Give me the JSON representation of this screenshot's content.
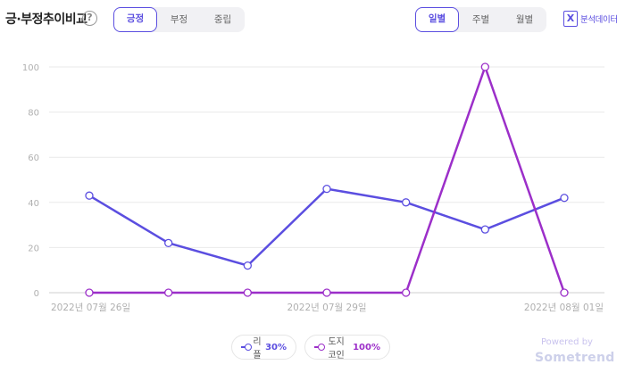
{
  "header": {
    "title": "긍·부정추이비교",
    "help_glyph": "?",
    "sentiment_tabs": [
      "긍정",
      "부정",
      "중립"
    ],
    "sentiment_active": 0,
    "period_tabs": [
      "일별",
      "주별",
      "월별"
    ],
    "period_active": 0,
    "export_icon": "excel-icon",
    "export_glyph": "X",
    "export_label": "분석데이터"
  },
  "chart_data": {
    "type": "line",
    "x": [
      "2022년 07월 26일",
      "2022년 07월 27일",
      "2022년 07월 28일",
      "2022년 07월 29일",
      "2022년 07월 30일",
      "2022년 07월 31일",
      "2022년 08월 01일"
    ],
    "x_tick_labels": [
      "2022년 07월 26일",
      "2022년 07월 29일",
      "2022년 08월 01일"
    ],
    "x_tick_indices": [
      0,
      3,
      6
    ],
    "ylim": [
      0,
      100
    ],
    "yticks": [
      0,
      20,
      40,
      60,
      80,
      100
    ],
    "grid": true,
    "series": [
      {
        "name": "리플",
        "percent": "30%",
        "color": "#5b4ee0",
        "values": [
          43,
          22,
          12,
          46,
          40,
          28,
          42
        ]
      },
      {
        "name": "도지코인",
        "percent": "100%",
        "color": "#9c2fc9",
        "values": [
          0,
          0,
          0,
          0,
          0,
          100,
          0
        ]
      }
    ],
    "legend_position": "bottom-center"
  },
  "footer": {
    "powered_by": "Powered by",
    "brand": "Sometrend"
  }
}
